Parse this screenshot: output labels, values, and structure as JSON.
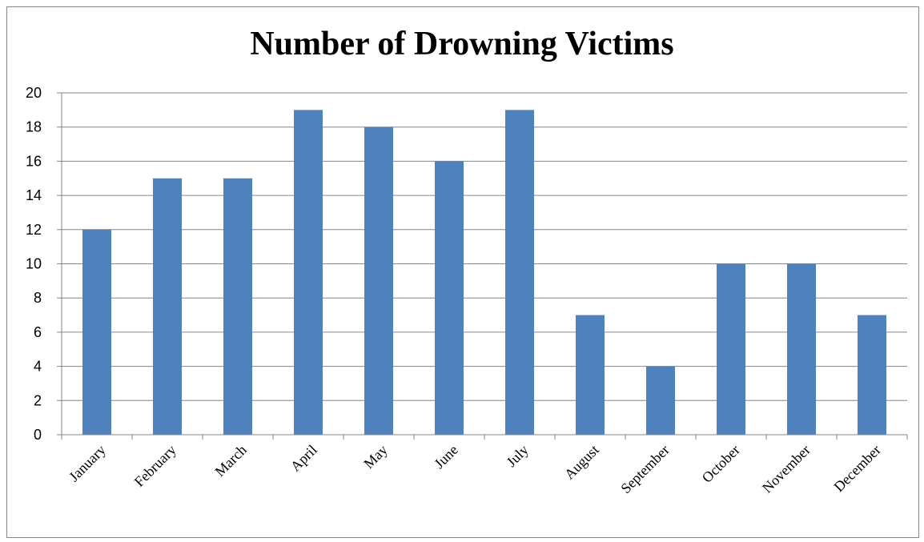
{
  "chart_data": {
    "type": "bar",
    "title": "Number of Drowning Victims",
    "xlabel": "",
    "ylabel": "",
    "categories": [
      "January",
      "February",
      "March",
      "April",
      "May",
      "June",
      "July",
      "August",
      "September",
      "October",
      "November",
      "December"
    ],
    "values": [
      12,
      15,
      15,
      19,
      18,
      16,
      19,
      7,
      4,
      10,
      10,
      7
    ],
    "ylim": [
      0,
      20
    ],
    "yticks": [
      0,
      2,
      4,
      6,
      8,
      10,
      12,
      14,
      16,
      18,
      20
    ],
    "grid": true,
    "legend": "none",
    "bar_color": "#4F81BD",
    "grid_color": "#868686"
  }
}
